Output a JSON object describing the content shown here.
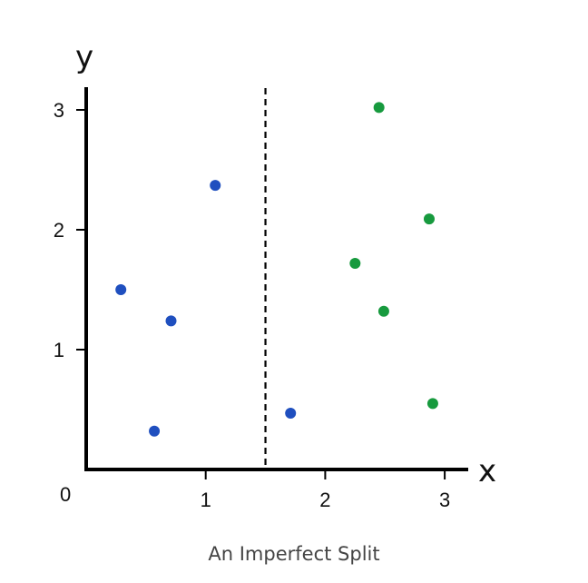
{
  "chart_data": {
    "type": "scatter",
    "caption": "An Imperfect Split",
    "xlabel": "x",
    "ylabel": "y",
    "xlim": [
      0,
      3.2
    ],
    "ylim": [
      0,
      3.2
    ],
    "origin_label": "0",
    "x_ticks": [
      1,
      2,
      3
    ],
    "y_ticks": [
      1,
      2,
      3
    ],
    "divider": {
      "x": 1.5,
      "style": "dashed"
    },
    "grid": false,
    "series": [
      {
        "color": "#1f4fbf",
        "points": [
          {
            "x": 0.29,
            "y": 1.5
          },
          {
            "x": 0.71,
            "y": 1.24
          },
          {
            "x": 1.08,
            "y": 2.37
          },
          {
            "x": 0.57,
            "y": 0.32
          },
          {
            "x": 1.71,
            "y": 0.47
          }
        ]
      },
      {
        "color": "#179a3e",
        "points": [
          {
            "x": 2.45,
            "y": 3.02
          },
          {
            "x": 2.87,
            "y": 2.09
          },
          {
            "x": 2.25,
            "y": 1.72
          },
          {
            "x": 2.49,
            "y": 1.32
          },
          {
            "x": 2.9,
            "y": 0.55
          }
        ]
      }
    ]
  }
}
